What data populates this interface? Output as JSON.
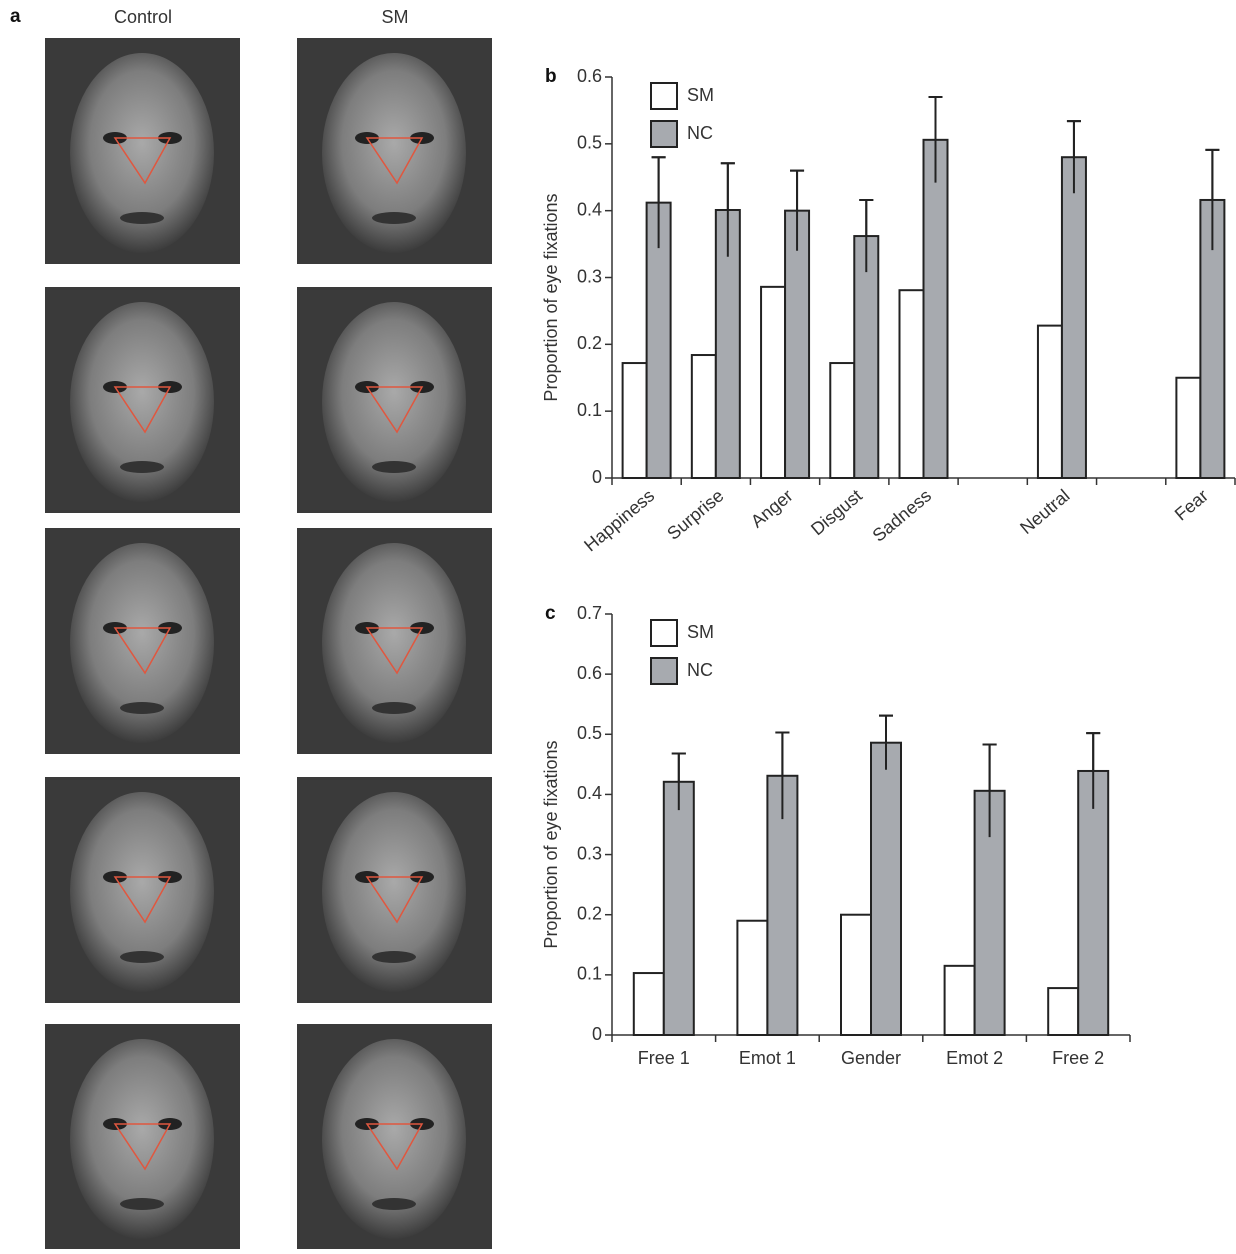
{
  "figure": {
    "panel_a": {
      "label": "a",
      "columns": [
        "Control",
        "SM"
      ]
    }
  },
  "chart_data": [
    {
      "type": "bar",
      "label": "b",
      "y_label": "Proportion of eye fixations",
      "categories": [
        "Happiness",
        "Surprise",
        "Anger",
        "Disgust",
        "Sadness",
        null,
        "Neutral",
        null,
        "Fear"
      ],
      "series": [
        {
          "name": "SM",
          "color": "#ffffff",
          "values": [
            0.172,
            0.184,
            0.286,
            0.172,
            0.281,
            null,
            0.228,
            null,
            0.15
          ]
        },
        {
          "name": "NC",
          "color": "#a7aaaf",
          "values": [
            0.412,
            0.401,
            0.4,
            0.362,
            0.506,
            null,
            0.48,
            null,
            0.416
          ],
          "errors": [
            0.068,
            0.07,
            0.06,
            0.054,
            0.064,
            null,
            0.054,
            null,
            0.075
          ]
        }
      ],
      "ylim": [
        0,
        0.6
      ],
      "yticks": [
        0,
        0.1,
        0.2,
        0.3,
        0.4,
        0.5,
        0.6
      ],
      "legend": "upper left"
    },
    {
      "type": "bar",
      "label": "c",
      "y_label": "Proportion of eye fixations",
      "categories": [
        "Free 1",
        "Emot 1",
        "Gender",
        "Emot 2",
        "Free 2"
      ],
      "series": [
        {
          "name": "SM",
          "color": "#ffffff",
          "values": [
            0.103,
            0.19,
            0.2,
            0.115,
            0.078
          ]
        },
        {
          "name": "NC",
          "color": "#a7aaaf",
          "values": [
            0.421,
            0.431,
            0.486,
            0.406,
            0.439
          ],
          "errors": [
            0.047,
            0.072,
            0.045,
            0.077,
            0.063
          ]
        }
      ],
      "ylim": [
        0,
        0.7
      ],
      "yticks": [
        0,
        0.1,
        0.2,
        0.3,
        0.4,
        0.5,
        0.6,
        0.7
      ],
      "legend": "upper left"
    }
  ]
}
